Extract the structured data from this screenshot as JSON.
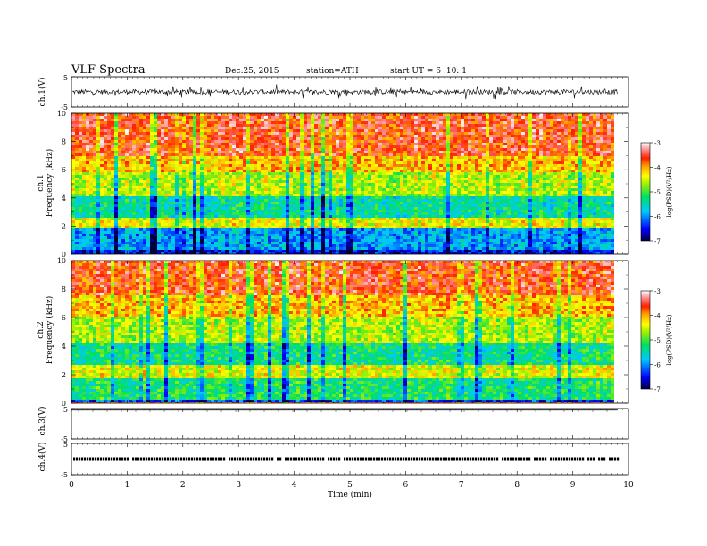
{
  "header": {
    "title": "VLF  Spectra",
    "date": "Dec.25, 2015",
    "station": "station=ATH",
    "start": "start  UT  =   6  :10: 1"
  },
  "chart_data": {
    "type": "heatmap",
    "title": "VLF  Spectra",
    "xlabel": "Time  (min)",
    "xlim": [
      0,
      10
    ],
    "xticks": [
      "0",
      "1",
      "2",
      "3",
      "4",
      "5",
      "6",
      "7",
      "8",
      "9",
      "10"
    ],
    "data_end_min": 9.8,
    "panels": [
      {
        "id": "ch1_wave",
        "kind": "waveform",
        "ylabel": "ch.1(V)",
        "ylim": [
          -5,
          5
        ],
        "yticks": [
          "5",
          "-5"
        ],
        "description": "dense noisy waveform, amplitude about ±1.5 V"
      },
      {
        "id": "ch1_spec",
        "kind": "spectrogram",
        "ylabel_top": "ch.1",
        "ylabel": "Frequency  (kHz)",
        "ylim": [
          0,
          10
        ],
        "yticks": [
          "0",
          "2",
          "4",
          "6",
          "8",
          "10"
        ],
        "colorbar": {
          "label": "log(PSD)(V²/Hz)",
          "range": [
            -7,
            -3
          ],
          "ticks": [
            "-3",
            "-4",
            "-5",
            "-6",
            "-7"
          ]
        },
        "bands": [
          {
            "from_khz": 0.0,
            "to_khz": 0.4,
            "log_psd": -6.5
          },
          {
            "from_khz": 0.4,
            "to_khz": 1.8,
            "log_psd": -5.9
          },
          {
            "from_khz": 1.8,
            "to_khz": 2.6,
            "log_psd": -4.4
          },
          {
            "from_khz": 2.6,
            "to_khz": 4.2,
            "log_psd": -5.4
          },
          {
            "from_khz": 4.2,
            "to_khz": 5.8,
            "log_psd": -4.6
          },
          {
            "from_khz": 5.8,
            "to_khz": 7.0,
            "log_psd": -4.1
          },
          {
            "from_khz": 7.0,
            "to_khz": 10.0,
            "log_psd": -3.6
          }
        ]
      },
      {
        "id": "ch2_spec",
        "kind": "spectrogram",
        "ylabel_top": "ch.2",
        "ylabel": "Frequency  (kHz)",
        "ylim": [
          0,
          10
        ],
        "yticks": [
          "0",
          "2",
          "4",
          "6",
          "8",
          "10"
        ],
        "colorbar": {
          "label": "log(PSD)(V²/Hz)",
          "range": [
            -7,
            -3
          ],
          "ticks": [
            "-3",
            "-4",
            "-5",
            "-6",
            "-7"
          ]
        },
        "bands": [
          {
            "from_khz": 0.0,
            "to_khz": 0.3,
            "log_psd": -6.3
          },
          {
            "from_khz": 0.3,
            "to_khz": 1.8,
            "log_psd": -5.2
          },
          {
            "from_khz": 1.8,
            "to_khz": 2.6,
            "log_psd": -4.4
          },
          {
            "from_khz": 2.6,
            "to_khz": 4.2,
            "log_psd": -5.3
          },
          {
            "from_khz": 4.2,
            "to_khz": 6.0,
            "log_psd": -4.6
          },
          {
            "from_khz": 6.0,
            "to_khz": 7.5,
            "log_psd": -4.1
          },
          {
            "from_khz": 7.5,
            "to_khz": 10.0,
            "log_psd": -3.6
          }
        ]
      },
      {
        "id": "ch3_wave",
        "kind": "waveform",
        "ylabel": "ch.3(V)",
        "ylim": [
          -5,
          5
        ],
        "yticks": [
          "5",
          "-5"
        ],
        "description": "flat trace near 4.5 V with periodic marks"
      },
      {
        "id": "ch4_wave",
        "kind": "waveform",
        "ylabel": "ch.4(V)",
        "ylim": [
          -5,
          5
        ],
        "yticks": [
          "5",
          "-5"
        ],
        "description": "dotted timing pulses near 0 V"
      }
    ]
  }
}
